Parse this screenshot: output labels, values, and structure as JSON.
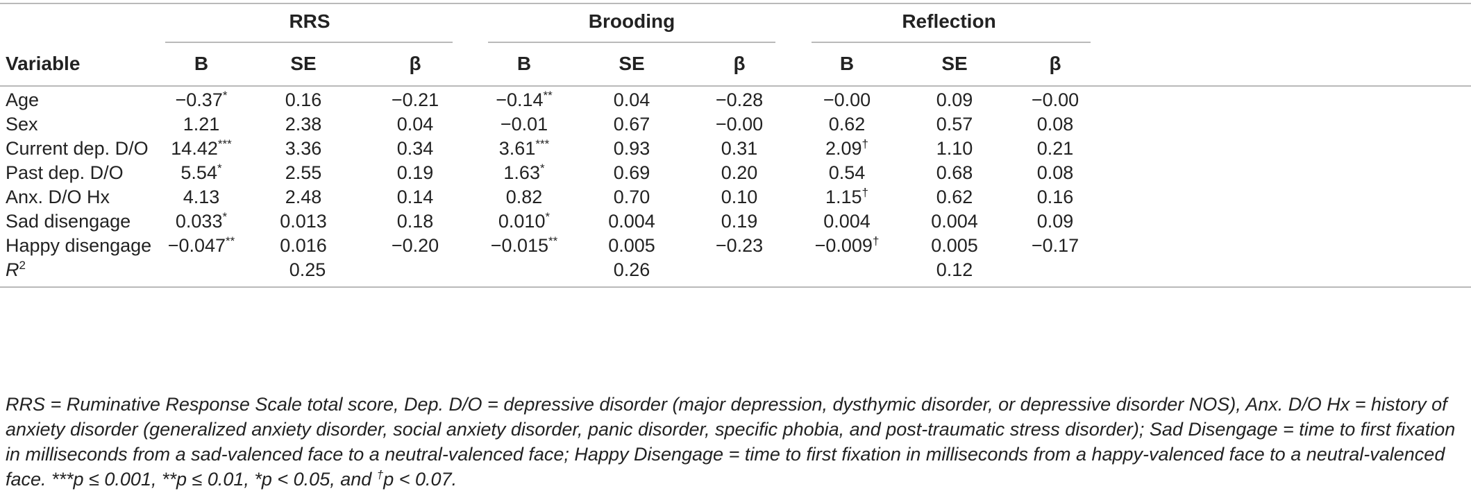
{
  "table": {
    "group_headers": [
      "RRS",
      "Brooding",
      "Reflection"
    ],
    "variable_header": "Variable",
    "sub_headers": [
      "B",
      "SE",
      "β",
      "B",
      "SE",
      "β",
      "B",
      "SE",
      "β"
    ],
    "rows": [
      {
        "label": "Age",
        "cells": [
          {
            "v": "−0.37",
            "s": "*"
          },
          {
            "v": "0.16",
            "s": ""
          },
          {
            "v": "−0.21",
            "s": ""
          },
          {
            "v": "−0.14",
            "s": "**"
          },
          {
            "v": "0.04",
            "s": ""
          },
          {
            "v": "−0.28",
            "s": ""
          },
          {
            "v": "−0.00",
            "s": ""
          },
          {
            "v": "0.09",
            "s": ""
          },
          {
            "v": "−0.00",
            "s": ""
          }
        ]
      },
      {
        "label": "Sex",
        "cells": [
          {
            "v": "1.21",
            "s": ""
          },
          {
            "v": "2.38",
            "s": ""
          },
          {
            "v": "0.04",
            "s": ""
          },
          {
            "v": "−0.01",
            "s": ""
          },
          {
            "v": "0.67",
            "s": ""
          },
          {
            "v": "−0.00",
            "s": ""
          },
          {
            "v": "0.62",
            "s": ""
          },
          {
            "v": "0.57",
            "s": ""
          },
          {
            "v": "0.08",
            "s": ""
          }
        ]
      },
      {
        "label": "Current dep. D/O",
        "cells": [
          {
            "v": "14.42",
            "s": "***"
          },
          {
            "v": "3.36",
            "s": ""
          },
          {
            "v": "0.34",
            "s": ""
          },
          {
            "v": "3.61",
            "s": "***"
          },
          {
            "v": "0.93",
            "s": ""
          },
          {
            "v": "0.31",
            "s": ""
          },
          {
            "v": "2.09",
            "s": "†"
          },
          {
            "v": "1.10",
            "s": ""
          },
          {
            "v": "0.21",
            "s": ""
          }
        ]
      },
      {
        "label": "Past dep. D/O",
        "cells": [
          {
            "v": "5.54",
            "s": "*"
          },
          {
            "v": "2.55",
            "s": ""
          },
          {
            "v": "0.19",
            "s": ""
          },
          {
            "v": "1.63",
            "s": "*"
          },
          {
            "v": "0.69",
            "s": ""
          },
          {
            "v": "0.20",
            "s": ""
          },
          {
            "v": "0.54",
            "s": ""
          },
          {
            "v": "0.68",
            "s": ""
          },
          {
            "v": "0.08",
            "s": ""
          }
        ]
      },
      {
        "label": "Anx. D/O Hx",
        "cells": [
          {
            "v": "4.13",
            "s": ""
          },
          {
            "v": "2.48",
            "s": ""
          },
          {
            "v": "0.14",
            "s": ""
          },
          {
            "v": "0.82",
            "s": ""
          },
          {
            "v": "0.70",
            "s": ""
          },
          {
            "v": "0.10",
            "s": ""
          },
          {
            "v": "1.15",
            "s": "†"
          },
          {
            "v": "0.62",
            "s": ""
          },
          {
            "v": "0.16",
            "s": ""
          }
        ]
      },
      {
        "label": "Sad disengage",
        "cells": [
          {
            "v": "0.033",
            "s": "*"
          },
          {
            "v": "0.013",
            "s": ""
          },
          {
            "v": "0.18",
            "s": ""
          },
          {
            "v": "0.010",
            "s": "*"
          },
          {
            "v": "0.004",
            "s": ""
          },
          {
            "v": "0.19",
            "s": ""
          },
          {
            "v": "0.004",
            "s": ""
          },
          {
            "v": "0.004",
            "s": ""
          },
          {
            "v": "0.09",
            "s": ""
          }
        ]
      },
      {
        "label": "Happy disengage",
        "cells": [
          {
            "v": "−0.047",
            "s": "**"
          },
          {
            "v": "0.016",
            "s": ""
          },
          {
            "v": "−0.20",
            "s": ""
          },
          {
            "v": "−0.015",
            "s": "**"
          },
          {
            "v": "0.005",
            "s": ""
          },
          {
            "v": "−0.23",
            "s": ""
          },
          {
            "v": "−0.009",
            "s": "†"
          },
          {
            "v": "0.005",
            "s": ""
          },
          {
            "v": "−0.17",
            "s": ""
          }
        ]
      }
    ],
    "r2": {
      "label_base": "R",
      "label_sup": "2",
      "values": [
        "0.25",
        "0.26",
        "0.12"
      ]
    }
  },
  "footnote": {
    "main": "RRS = Ruminative Response Scale total score, Dep. D/O = depressive disorder (major depression, dysthymic disorder, or depressive disorder NOS), Anx. D/O Hx = history of anxiety disorder (generalized anxiety disorder, social anxiety disorder, panic disorder, specific phobia, and post-traumatic stress disorder); Sad Disengage = time to first fixation in milliseconds from a sad-valenced face to a neutral-valenced face; Happy Disengage = time to first fixation in milliseconds from a happy-valenced face to a neutral-valenced face. ***p ≤ 0.001, **p ≤ 0.01, *p < 0.05, and ",
    "dagger": "†",
    "tail": "p < 0.07."
  }
}
